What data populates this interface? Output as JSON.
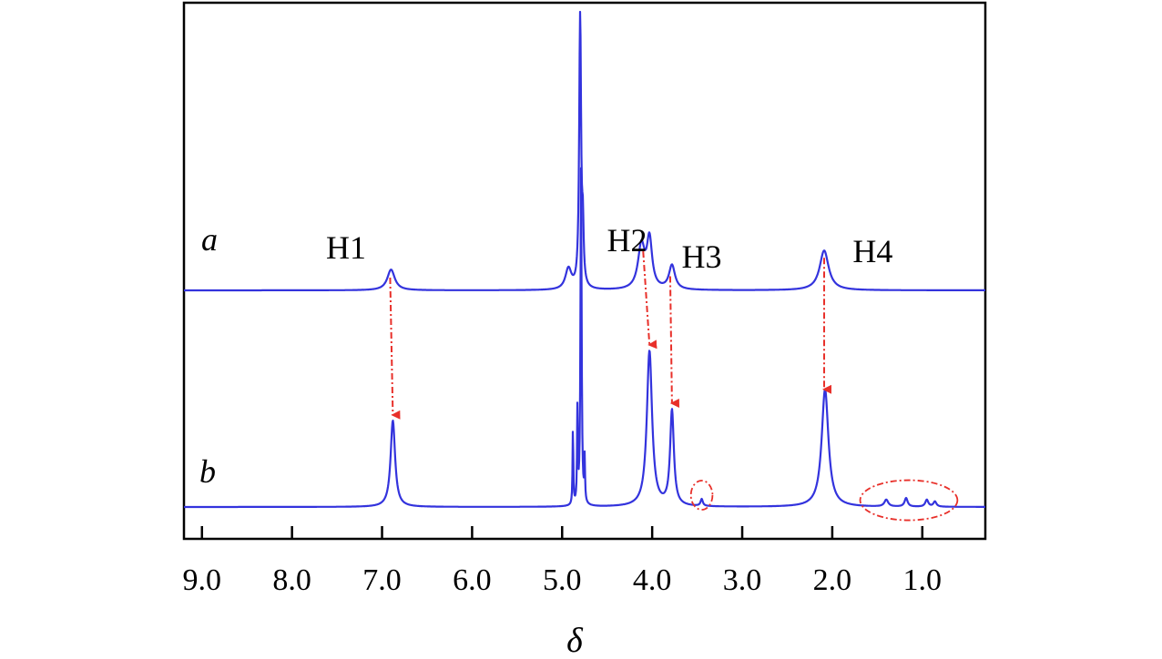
{
  "chart_data": {
    "type": "line",
    "title": "",
    "xlabel": "δ",
    "ylabel": "",
    "x_reversed": true,
    "xlim": [
      9.2,
      0.3
    ],
    "x_ticks": [
      {
        "value": 9.0,
        "label": "9.0"
      },
      {
        "value": 8.0,
        "label": "8.0"
      },
      {
        "value": 7.0,
        "label": "7.0"
      },
      {
        "value": 6.0,
        "label": "6.0"
      },
      {
        "value": 5.0,
        "label": "5.0"
      },
      {
        "value": 4.0,
        "label": "4.0"
      },
      {
        "value": 3.0,
        "label": "3.0"
      },
      {
        "value": 2.0,
        "label": "2.0"
      },
      {
        "value": 1.0,
        "label": "1.0"
      }
    ],
    "y_ticks_shown": false,
    "grid": false,
    "line_color": "#3333dd",
    "annotation_color": "#e8302a",
    "series": [
      {
        "name": "a",
        "baseline": 0.0,
        "peaks": [
          {
            "x": 6.9,
            "height": 0.12,
            "width": 0.1
          },
          {
            "x": 4.93,
            "height": 0.12,
            "width": 0.08
          },
          {
            "x": 4.8,
            "height": 1.6,
            "width": 0.025
          },
          {
            "x": 4.77,
            "height": 0.3,
            "width": 0.02
          },
          {
            "x": 4.12,
            "height": 0.25,
            "width": 0.09
          },
          {
            "x": 4.03,
            "height": 0.28,
            "width": 0.07
          },
          {
            "x": 3.78,
            "height": 0.14,
            "width": 0.08
          },
          {
            "x": 2.09,
            "height": 0.23,
            "width": 0.12
          }
        ]
      },
      {
        "name": "b",
        "baseline": 0.0,
        "peaks": [
          {
            "x": 6.88,
            "height": 0.5,
            "width": 0.06
          },
          {
            "x": 4.88,
            "height": 0.45,
            "width": 0.01
          },
          {
            "x": 4.83,
            "height": 0.55,
            "width": 0.01
          },
          {
            "x": 4.79,
            "height": 1.95,
            "width": 0.015
          },
          {
            "x": 4.75,
            "height": 0.25,
            "width": 0.01
          },
          {
            "x": 4.03,
            "height": 0.9,
            "width": 0.07
          },
          {
            "x": 3.78,
            "height": 0.55,
            "width": 0.05
          },
          {
            "x": 3.45,
            "height": 0.04,
            "width": 0.03
          },
          {
            "x": 2.08,
            "height": 0.68,
            "width": 0.09
          },
          {
            "x": 1.4,
            "height": 0.04,
            "width": 0.05
          },
          {
            "x": 1.18,
            "height": 0.05,
            "width": 0.04
          },
          {
            "x": 0.95,
            "height": 0.04,
            "width": 0.04
          },
          {
            "x": 0.86,
            "height": 0.03,
            "width": 0.04
          }
        ]
      }
    ],
    "trace_labels": [
      {
        "series": "a",
        "text": "a"
      },
      {
        "series": "b",
        "text": "b"
      }
    ],
    "peak_labels": [
      {
        "text": "H1",
        "x": 7.4
      },
      {
        "text": "H2",
        "x": 4.28
      },
      {
        "text": "H3",
        "x": 3.45
      },
      {
        "text": "H4",
        "x": 1.55
      }
    ],
    "shift_arrows": [
      {
        "from_x": 6.91,
        "to_x": 6.88,
        "label": "H1"
      },
      {
        "from_x": 4.1,
        "to_x": 4.03,
        "label": "H2"
      },
      {
        "from_x": 3.8,
        "to_x": 3.78,
        "label": "H3"
      },
      {
        "from_x": 2.09,
        "to_x": 2.09,
        "label": "H4"
      }
    ],
    "highlight_regions": [
      {
        "x_center": 3.45,
        "x_halfwidth": 0.1
      },
      {
        "x_center": 1.15,
        "x_halfwidth": 0.52
      }
    ]
  }
}
